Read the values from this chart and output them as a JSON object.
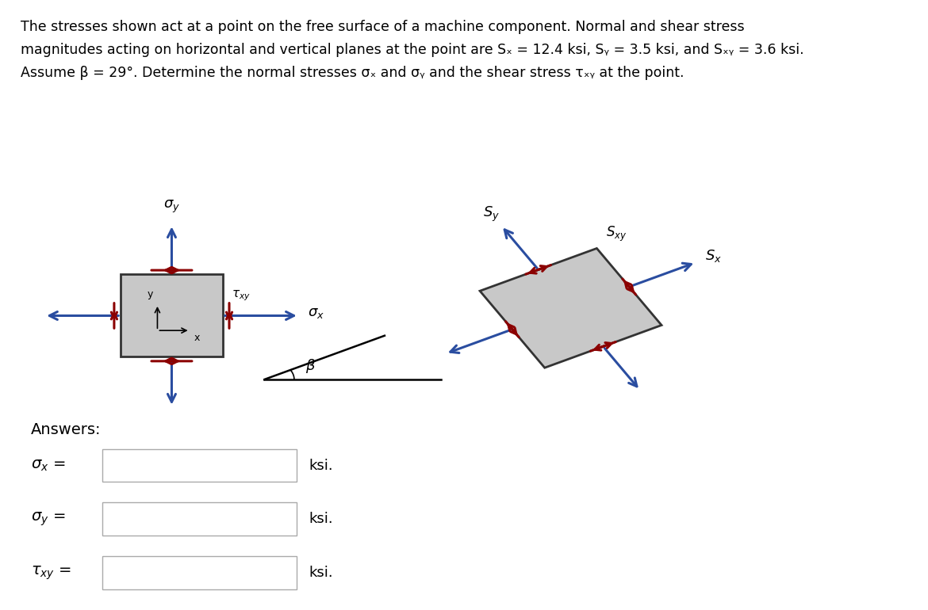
{
  "background_color": "#ffffff",
  "beta_deg": 29,
  "arrow_blue": "#2a4da0",
  "arrow_red": "#8b0000",
  "box_fill": "#c8c8c8",
  "box_edge": "#333333",
  "line1": "The stresses shown act at a point on the free surface of a machine component. Normal and shear stress",
  "line2": "magnitudes acting on horizontal and vertical planes at the point are Sₓ = 12.4 ksi, Sᵧ = 3.5 ksi, and Sₓᵧ = 3.6 ksi.",
  "line3": "Assume β = 29°. Determine the normal stresses σₓ and σᵧ and the shear stress τₓᵧ at the point.",
  "answers_label": "Answers:",
  "unit": "ksi."
}
